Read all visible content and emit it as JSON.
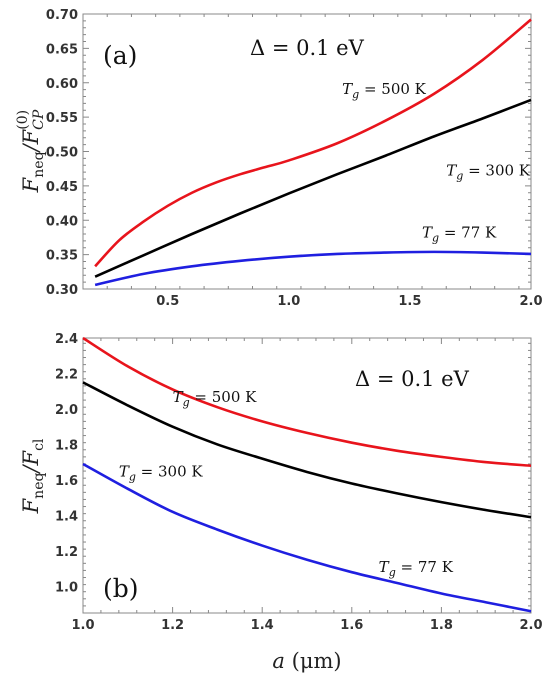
{
  "chart_data": [
    {
      "type": "line",
      "panel_tag": "(a)",
      "ylabel": "F_neq/F_CP^(0)",
      "xlabel": "",
      "xlim": [
        0.15,
        2.0
      ],
      "ylim": [
        0.3,
        0.7
      ],
      "x_ticks": [
        0.5,
        1.0,
        1.5,
        2.0
      ],
      "x_tick_labels": [
        "0.5",
        "1.0",
        "1.5",
        "2.0"
      ],
      "y_ticks": [
        0.3,
        0.35,
        0.4,
        0.45,
        0.5,
        0.55,
        0.6,
        0.65,
        0.7
      ],
      "y_tick_labels": [
        "0.30",
        "0.35",
        "0.40",
        "0.45",
        "0.50",
        "0.55",
        "0.60",
        "0.65",
        "0.70"
      ],
      "gap_annotation": "Δ = 0.1 eV",
      "series": [
        {
          "name": "T_g = 500 K",
          "color": "#e8141c",
          "x": [
            0.2,
            0.3,
            0.4,
            0.5,
            0.6,
            0.7,
            0.8,
            0.9,
            1.0,
            1.2,
            1.4,
            1.6,
            1.8,
            2.0
          ],
          "y": [
            0.333,
            0.371,
            0.398,
            0.421,
            0.44,
            0.455,
            0.467,
            0.477,
            0.487,
            0.512,
            0.545,
            0.584,
            0.633,
            0.692
          ]
        },
        {
          "name": "T_g = 300 K",
          "color": "#000000",
          "x": [
            0.2,
            0.4,
            0.6,
            0.8,
            1.0,
            1.2,
            1.4,
            1.6,
            1.8,
            2.0
          ],
          "y": [
            0.318,
            0.349,
            0.38,
            0.41,
            0.439,
            0.467,
            0.494,
            0.522,
            0.548,
            0.575
          ]
        },
        {
          "name": "T_g = 77 K",
          "color": "#1f1fe0",
          "x": [
            0.2,
            0.4,
            0.6,
            0.8,
            1.0,
            1.2,
            1.4,
            1.6,
            1.8,
            2.0
          ],
          "y": [
            0.306,
            0.322,
            0.333,
            0.341,
            0.347,
            0.351,
            0.353,
            0.354,
            0.353,
            0.351
          ]
        }
      ],
      "annotations": [
        {
          "text": "T_g = 500 K",
          "x": 1.22,
          "y": 0.584
        },
        {
          "text": "T_g = 300 K",
          "x": 1.65,
          "y": 0.465
        },
        {
          "text": "T_g = 77 K",
          "x": 1.55,
          "y": 0.375
        }
      ]
    },
    {
      "type": "line",
      "panel_tag": "(b)",
      "ylabel": "F_neq/F_cl",
      "xlabel": "a (μm)",
      "xlim": [
        1.0,
        2.0
      ],
      "ylim": [
        0.85,
        2.4
      ],
      "x_ticks": [
        1.0,
        1.2,
        1.4,
        1.6,
        1.8,
        2.0
      ],
      "x_tick_labels": [
        "1.0",
        "1.2",
        "1.4",
        "1.6",
        "1.8",
        "2.0"
      ],
      "y_ticks": [
        1.0,
        1.2,
        1.4,
        1.6,
        1.8,
        2.0,
        2.2,
        2.4
      ],
      "y_tick_labels": [
        "1.0",
        "1.2",
        "1.4",
        "1.6",
        "1.8",
        "2.0",
        "2.2",
        "2.4"
      ],
      "gap_annotation": "Δ = 0.1 eV",
      "series": [
        {
          "name": "T_g = 500 K",
          "color": "#e8141c",
          "x": [
            1.0,
            1.1,
            1.2,
            1.3,
            1.4,
            1.5,
            1.6,
            1.7,
            1.8,
            1.9,
            2.0
          ],
          "y": [
            2.4,
            2.24,
            2.11,
            2.01,
            1.93,
            1.865,
            1.81,
            1.765,
            1.73,
            1.7,
            1.68
          ]
        },
        {
          "name": "T_g = 300 K",
          "color": "#000000",
          "x": [
            1.0,
            1.1,
            1.2,
            1.3,
            1.4,
            1.5,
            1.6,
            1.7,
            1.8,
            1.9,
            2.0
          ],
          "y": [
            2.15,
            2.02,
            1.9,
            1.8,
            1.72,
            1.645,
            1.58,
            1.525,
            1.475,
            1.43,
            1.39
          ]
        },
        {
          "name": "T_g = 77 K",
          "color": "#1f1fe0",
          "x": [
            1.0,
            1.1,
            1.2,
            1.3,
            1.4,
            1.5,
            1.6,
            1.7,
            1.8,
            1.9,
            2.0
          ],
          "y": [
            1.69,
            1.55,
            1.42,
            1.32,
            1.23,
            1.15,
            1.08,
            1.02,
            0.96,
            0.91,
            0.86
          ]
        }
      ],
      "annotations": [
        {
          "text": "T_g = 500 K",
          "x": 1.2,
          "y": 2.04
        },
        {
          "text": "T_g = 300 K",
          "x": 1.08,
          "y": 1.62
        },
        {
          "text": "T_g = 77 K",
          "x": 1.66,
          "y": 1.08
        }
      ]
    }
  ]
}
